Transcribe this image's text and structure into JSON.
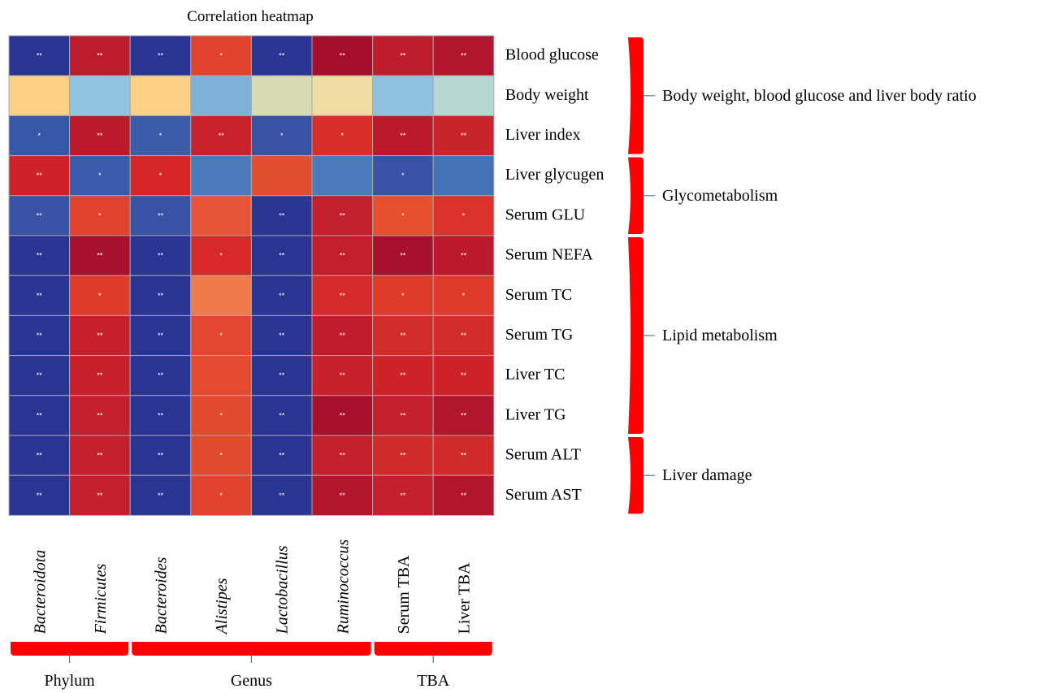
{
  "chart_data": {
    "type": "heatmap",
    "title": "Correlation heatmap",
    "columns": [
      {
        "label": "Bacteroidota",
        "italic": true
      },
      {
        "label": "Firmicutes",
        "italic": true
      },
      {
        "label": "Bacteroides",
        "italic": true
      },
      {
        "label": "Alistipes",
        "italic": true
      },
      {
        "label": "Lactobacillus",
        "italic": true
      },
      {
        "label": "Ruminococcus",
        "italic": true
      },
      {
        "label": "Serum TBA",
        "italic": false
      },
      {
        "label": "Liver TBA",
        "italic": false
      }
    ],
    "rows": [
      "Blood glucose",
      "Body weight",
      "Liver index",
      "Liver glycugen",
      "Serum GLU",
      "Serum NEFA",
      "Serum TC",
      "Serum TG",
      "Liver TC",
      "Liver TG",
      "Serum ALT",
      "Serum AST"
    ],
    "colors": [
      [
        "#2a3593",
        "#bd1c2d",
        "#2a3593",
        "#e2432e",
        "#2a3593",
        "#a50f2b",
        "#bf1d2c",
        "#b2152c"
      ],
      [
        "#fdd185",
        "#8fc5e0",
        "#fdd185",
        "#7fb2d7",
        "#d9dbb5",
        "#eedca3",
        "#8fc2e0",
        "#b5d7d1"
      ],
      [
        "#3957a8",
        "#bb1a2c",
        "#3a5ca9",
        "#c8202c",
        "#3a52a4",
        "#d92f2a",
        "#bb1a2c",
        "#c92429"
      ],
      [
        "#ce2228",
        "#3a5cab",
        "#d62728",
        "#4a7ab9",
        "#e24c2f",
        "#4a7ab9",
        "#3a52a4",
        "#4472b6"
      ],
      [
        "#3a52a4",
        "#e0422d",
        "#3a52a4",
        "#e65537",
        "#2a3593",
        "#c2202d",
        "#e6502f",
        "#da312a"
      ],
      [
        "#2a3593",
        "#a8112b",
        "#2a3593",
        "#d72a28",
        "#2a3593",
        "#c41e2c",
        "#a8112b",
        "#bb1a2c"
      ],
      [
        "#2a3593",
        "#df3b2b",
        "#2a3593",
        "#f07a4a",
        "#2a3593",
        "#d42b2a",
        "#df3b2b",
        "#df3b2b"
      ],
      [
        "#2a3593",
        "#c7202c",
        "#2a3593",
        "#e3472f",
        "#2a3593",
        "#c01c2b",
        "#d22c2a",
        "#d22c2a"
      ],
      [
        "#2a3593",
        "#c7202c",
        "#2a3593",
        "#e44a30",
        "#2a3593",
        "#c7202c",
        "#ce2228",
        "#ce2228"
      ],
      [
        "#2a3593",
        "#c41f2c",
        "#2a3593",
        "#e24a30",
        "#2a3593",
        "#a8112b",
        "#c41f2c",
        "#b2152c"
      ],
      [
        "#2a3593",
        "#c41f2c",
        "#2a3593",
        "#e24a30",
        "#2a3593",
        "#c41f2c",
        "#d02a2a",
        "#d02a2a"
      ],
      [
        "#2a3593",
        "#c41f2c",
        "#2a3593",
        "#e3432e",
        "#2a3593",
        "#b2152c",
        "#c41f2c",
        "#b2152c"
      ]
    ],
    "significance": [
      [
        "**",
        "**",
        "**",
        "*",
        "**",
        "**",
        "**",
        "**"
      ],
      [
        "",
        "",
        "",
        "",
        "",
        "",
        "",
        ""
      ],
      [
        "*",
        "**",
        "*",
        "**",
        "*",
        "*",
        "**",
        "**"
      ],
      [
        "**",
        "*",
        "*",
        "",
        "",
        "",
        "*",
        ""
      ],
      [
        "**",
        "*",
        "**",
        "",
        "**",
        "**",
        "*",
        "*"
      ],
      [
        "**",
        "**",
        "**",
        "*",
        "**",
        "**",
        "**",
        "**"
      ],
      [
        "**",
        "*",
        "**",
        "",
        "**",
        "**",
        "*",
        "*"
      ],
      [
        "**",
        "**",
        "**",
        "*",
        "**",
        "**",
        "**",
        "**"
      ],
      [
        "**",
        "**",
        "**",
        "",
        "**",
        "**",
        "**",
        "**"
      ],
      [
        "**",
        "**",
        "**",
        "*",
        "**",
        "**",
        "**",
        "**"
      ],
      [
        "**",
        "**",
        "**",
        "*",
        "**",
        "**",
        "**",
        "**"
      ],
      [
        "**",
        "**",
        "**",
        "*",
        "**",
        "**",
        "**",
        "**"
      ]
    ],
    "row_groups": [
      {
        "label": "Body weight, blood glucose and liver body ratio",
        "rows": [
          "Blood glucose",
          "Body weight",
          "Liver index"
        ]
      },
      {
        "label": "Glycometabolism",
        "rows": [
          "Liver glycugen",
          "Serum GLU"
        ]
      },
      {
        "label": "Lipid metabolism",
        "rows": [
          "Serum NEFA",
          "Serum TC",
          "Serum TG",
          "Liver TC",
          "Liver TG"
        ]
      },
      {
        "label": "Liver damage",
        "rows": [
          "Serum ALT",
          "Serum AST"
        ]
      }
    ],
    "column_groups": [
      {
        "label": "Phylum",
        "columns": [
          "Bacteroidota",
          "Firmicutes"
        ]
      },
      {
        "label": "Genus",
        "columns": [
          "Bacteroides",
          "Alistipes",
          "Lactobacillus",
          "Ruminococcus"
        ]
      },
      {
        "label": "TBA",
        "columns": [
          "Serum TBA",
          "Liver TBA"
        ]
      }
    ],
    "bracket_color": "#ff0000",
    "connector_color": "#4a7bbf",
    "cell_border_color": "#a9a9a9"
  }
}
